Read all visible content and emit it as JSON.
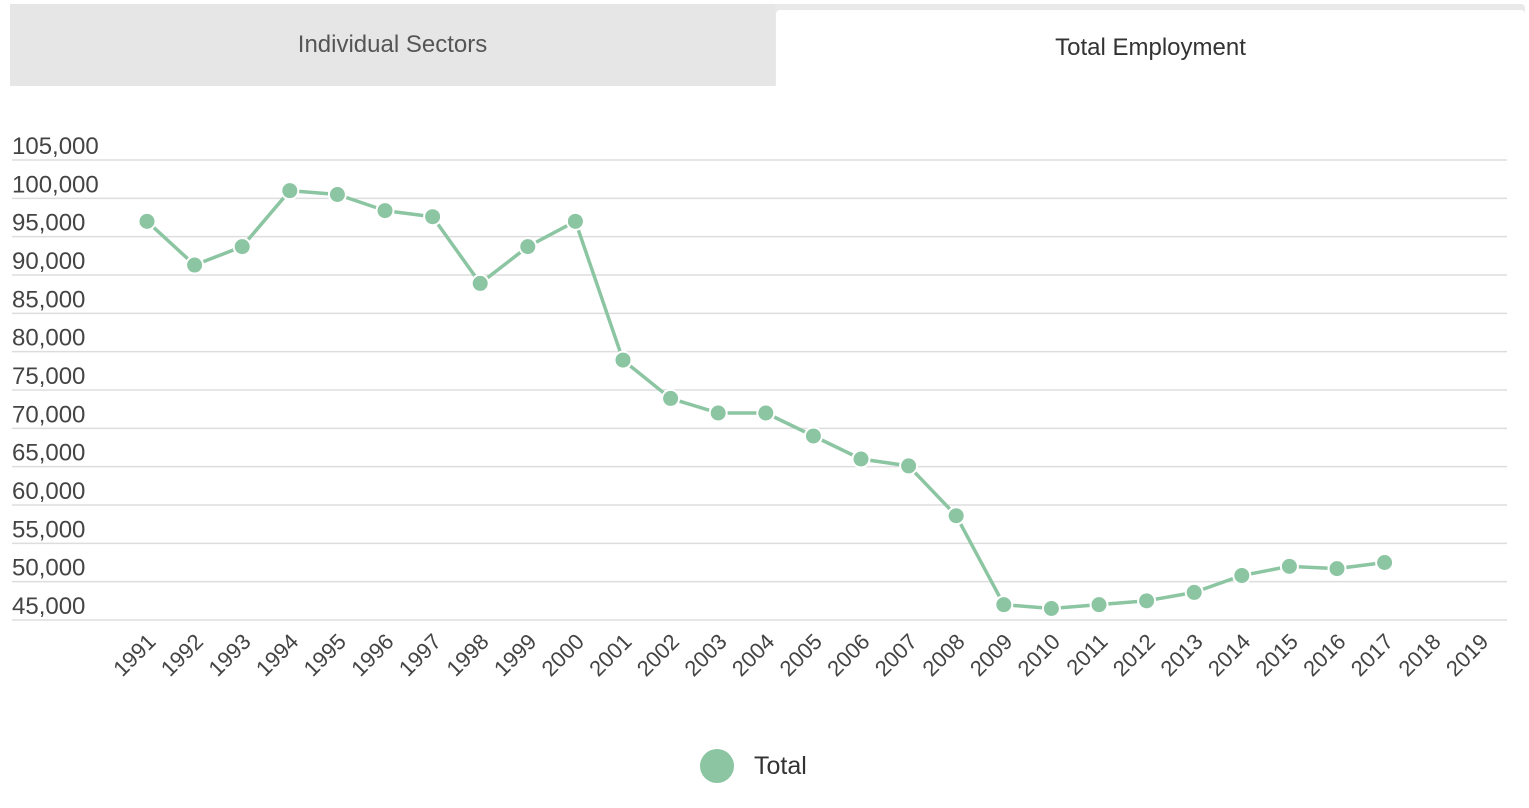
{
  "tabs": [
    {
      "label": "Individual Sectors",
      "active": false
    },
    {
      "label": "Total Employment",
      "active": true
    }
  ],
  "colors": {
    "series": "#8cc5a2",
    "grid": "#dddddd",
    "tab_bg": "#e6e6e6"
  },
  "chart_data": {
    "type": "line",
    "title": "",
    "xlabel": "",
    "ylabel": "",
    "categories": [
      "1991",
      "1992",
      "1993",
      "1994",
      "1995",
      "1996",
      "1997",
      "1998",
      "1999",
      "2000",
      "2001",
      "2002",
      "2003",
      "2004",
      "2005",
      "2006",
      "2007",
      "2008",
      "2009",
      "2010",
      "2011",
      "2012",
      "2013",
      "2014",
      "2015",
      "2016",
      "2017",
      "2018",
      "2019"
    ],
    "yticks": [
      45000,
      50000,
      55000,
      60000,
      65000,
      70000,
      75000,
      80000,
      85000,
      90000,
      95000,
      100000,
      105000
    ],
    "ytick_labels": [
      "45,000",
      "50,000",
      "55,000",
      "60,000",
      "65,000",
      "70,000",
      "75,000",
      "80,000",
      "85,000",
      "90,000",
      "95,000",
      "100,000",
      "105,000"
    ],
    "ylim": [
      45000,
      105000
    ],
    "grid": true,
    "legend_position": "bottom-center",
    "series": [
      {
        "name": "Total",
        "values": [
          97000,
          91300,
          93700,
          101000,
          100500,
          98400,
          97600,
          88900,
          93700,
          97000,
          78900,
          73900,
          72000,
          72000,
          69000,
          66000,
          65100,
          58600,
          47000,
          46500,
          47000,
          47500,
          48600,
          50800,
          52000,
          51700,
          52500,
          null,
          null
        ]
      }
    ]
  },
  "legend": {
    "label": "Total"
  }
}
